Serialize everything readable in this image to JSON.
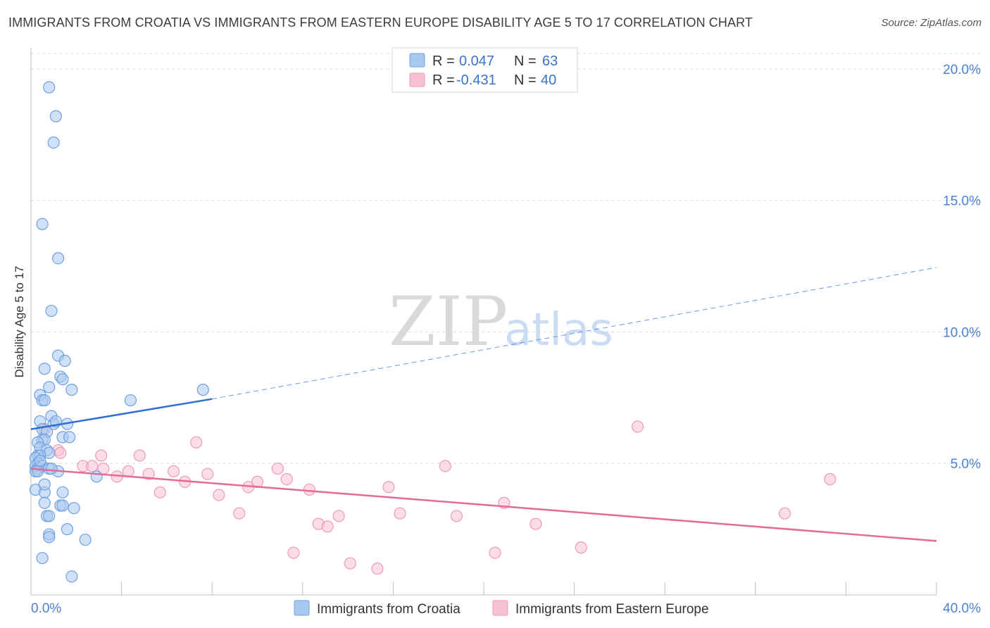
{
  "title": "IMMIGRANTS FROM CROATIA VS IMMIGRANTS FROM EASTERN EUROPE DISABILITY AGE 5 TO 17 CORRELATION CHART",
  "source": "Source: ZipAtlas.com",
  "watermark": {
    "zip": "ZIP",
    "atlas": "atlas"
  },
  "legend_top": {
    "r_label": "R =",
    "n_label": "N =",
    "croatia": {
      "r": "0.047",
      "n": "63"
    },
    "eastern": {
      "r": "-0.431",
      "n": "40"
    }
  },
  "legend_bottom": {
    "croatia": "Immigrants from Croatia",
    "eastern": "Immigrants from Eastern Europe"
  },
  "colors": {
    "croatia_fill": "#a9c8f0",
    "croatia_stroke": "#6fa0e0",
    "croatia_line": "#2f6fd0",
    "eastern_fill": "#f7c1d1",
    "eastern_stroke": "#ee9ab4",
    "eastern_line": "#e46b96",
    "tick_label": "#4a7fd4"
  },
  "chart_data": {
    "type": "scatter",
    "title": "IMMIGRANTS FROM CROATIA VS IMMIGRANTS FROM EASTERN EUROPE DISABILITY AGE 5 TO 17 CORRELATION CHART",
    "xlabel": "",
    "ylabel": "Disability Age 5 to 17",
    "xlim": [
      0,
      40
    ],
    "ylim": [
      0,
      20.8
    ],
    "y_ticks": [
      5,
      10,
      15,
      20
    ],
    "y_tick_labels": [
      "5.0%",
      "10.0%",
      "15.0%",
      "20.0%"
    ],
    "x_tick_labels": {
      "min": "0.0%",
      "max": "40.0%"
    },
    "grid": true,
    "series": [
      {
        "name": "Immigrants from Croatia",
        "key": "croatia",
        "trend": {
          "x": [
            0,
            8
          ],
          "y": [
            6.3,
            7.45
          ],
          "dashed_to": [
            40,
            12.45
          ]
        },
        "points": [
          [
            0.8,
            19.3
          ],
          [
            1.1,
            18.2
          ],
          [
            1.0,
            17.2
          ],
          [
            0.5,
            14.1
          ],
          [
            1.2,
            12.8
          ],
          [
            0.9,
            10.8
          ],
          [
            1.2,
            9.1
          ],
          [
            1.5,
            8.9
          ],
          [
            0.6,
            8.6
          ],
          [
            1.3,
            8.3
          ],
          [
            1.4,
            8.2
          ],
          [
            0.8,
            7.9
          ],
          [
            1.8,
            7.8
          ],
          [
            0.4,
            7.6
          ],
          [
            0.5,
            7.4
          ],
          [
            0.6,
            7.4
          ],
          [
            0.9,
            6.8
          ],
          [
            0.4,
            6.6
          ],
          [
            1.0,
            6.5
          ],
          [
            1.6,
            6.5
          ],
          [
            0.5,
            6.3
          ],
          [
            0.7,
            6.2
          ],
          [
            1.4,
            6.0
          ],
          [
            0.5,
            5.9
          ],
          [
            0.6,
            5.9
          ],
          [
            0.3,
            5.8
          ],
          [
            0.4,
            5.6
          ],
          [
            0.7,
            5.5
          ],
          [
            0.8,
            5.4
          ],
          [
            0.3,
            5.3
          ],
          [
            0.4,
            5.3
          ],
          [
            0.2,
            5.2
          ],
          [
            0.3,
            5.0
          ],
          [
            0.2,
            4.9
          ],
          [
            0.3,
            4.8
          ],
          [
            0.5,
            4.9
          ],
          [
            0.8,
            4.8
          ],
          [
            1.2,
            4.7
          ],
          [
            0.2,
            4.7
          ],
          [
            0.3,
            4.7
          ],
          [
            2.9,
            4.5
          ],
          [
            0.2,
            4.0
          ],
          [
            0.6,
            3.9
          ],
          [
            1.4,
            3.9
          ],
          [
            0.6,
            3.5
          ],
          [
            1.3,
            3.4
          ],
          [
            1.4,
            3.4
          ],
          [
            1.9,
            3.3
          ],
          [
            0.7,
            3.0
          ],
          [
            0.8,
            3.0
          ],
          [
            1.6,
            2.5
          ],
          [
            0.8,
            2.3
          ],
          [
            0.8,
            2.2
          ],
          [
            2.4,
            2.1
          ],
          [
            0.5,
            1.4
          ],
          [
            1.8,
            0.7
          ],
          [
            4.4,
            7.4
          ],
          [
            7.6,
            7.8
          ],
          [
            1.7,
            6.0
          ],
          [
            0.9,
            4.8
          ],
          [
            0.6,
            4.2
          ],
          [
            1.1,
            6.6
          ],
          [
            0.4,
            5.1
          ]
        ]
      },
      {
        "name": "Immigrants from Eastern Europe",
        "key": "eastern",
        "trend": {
          "x": [
            0,
            40
          ],
          "y": [
            4.8,
            2.05
          ]
        },
        "points": [
          [
            0.6,
            6.3
          ],
          [
            1.2,
            5.5
          ],
          [
            1.3,
            5.4
          ],
          [
            2.3,
            4.9
          ],
          [
            2.7,
            4.9
          ],
          [
            3.1,
            5.3
          ],
          [
            3.2,
            4.8
          ],
          [
            3.8,
            4.5
          ],
          [
            4.3,
            4.7
          ],
          [
            4.8,
            5.3
          ],
          [
            5.2,
            4.6
          ],
          [
            5.7,
            3.9
          ],
          [
            6.3,
            4.7
          ],
          [
            6.8,
            4.3
          ],
          [
            7.3,
            5.8
          ],
          [
            7.8,
            4.6
          ],
          [
            8.3,
            3.8
          ],
          [
            9.2,
            3.1
          ],
          [
            9.6,
            4.1
          ],
          [
            10.0,
            4.3
          ],
          [
            10.9,
            4.8
          ],
          [
            11.3,
            4.4
          ],
          [
            11.6,
            1.6
          ],
          [
            12.3,
            4.0
          ],
          [
            12.7,
            2.7
          ],
          [
            13.1,
            2.6
          ],
          [
            13.6,
            3.0
          ],
          [
            14.1,
            1.2
          ],
          [
            15.3,
            1.0
          ],
          [
            15.8,
            4.1
          ],
          [
            16.3,
            3.1
          ],
          [
            18.3,
            4.9
          ],
          [
            18.8,
            3.0
          ],
          [
            20.5,
            1.6
          ],
          [
            20.9,
            3.5
          ],
          [
            22.3,
            2.7
          ],
          [
            24.3,
            1.8
          ],
          [
            26.8,
            6.4
          ],
          [
            33.3,
            3.1
          ],
          [
            35.3,
            4.4
          ]
        ]
      }
    ]
  }
}
